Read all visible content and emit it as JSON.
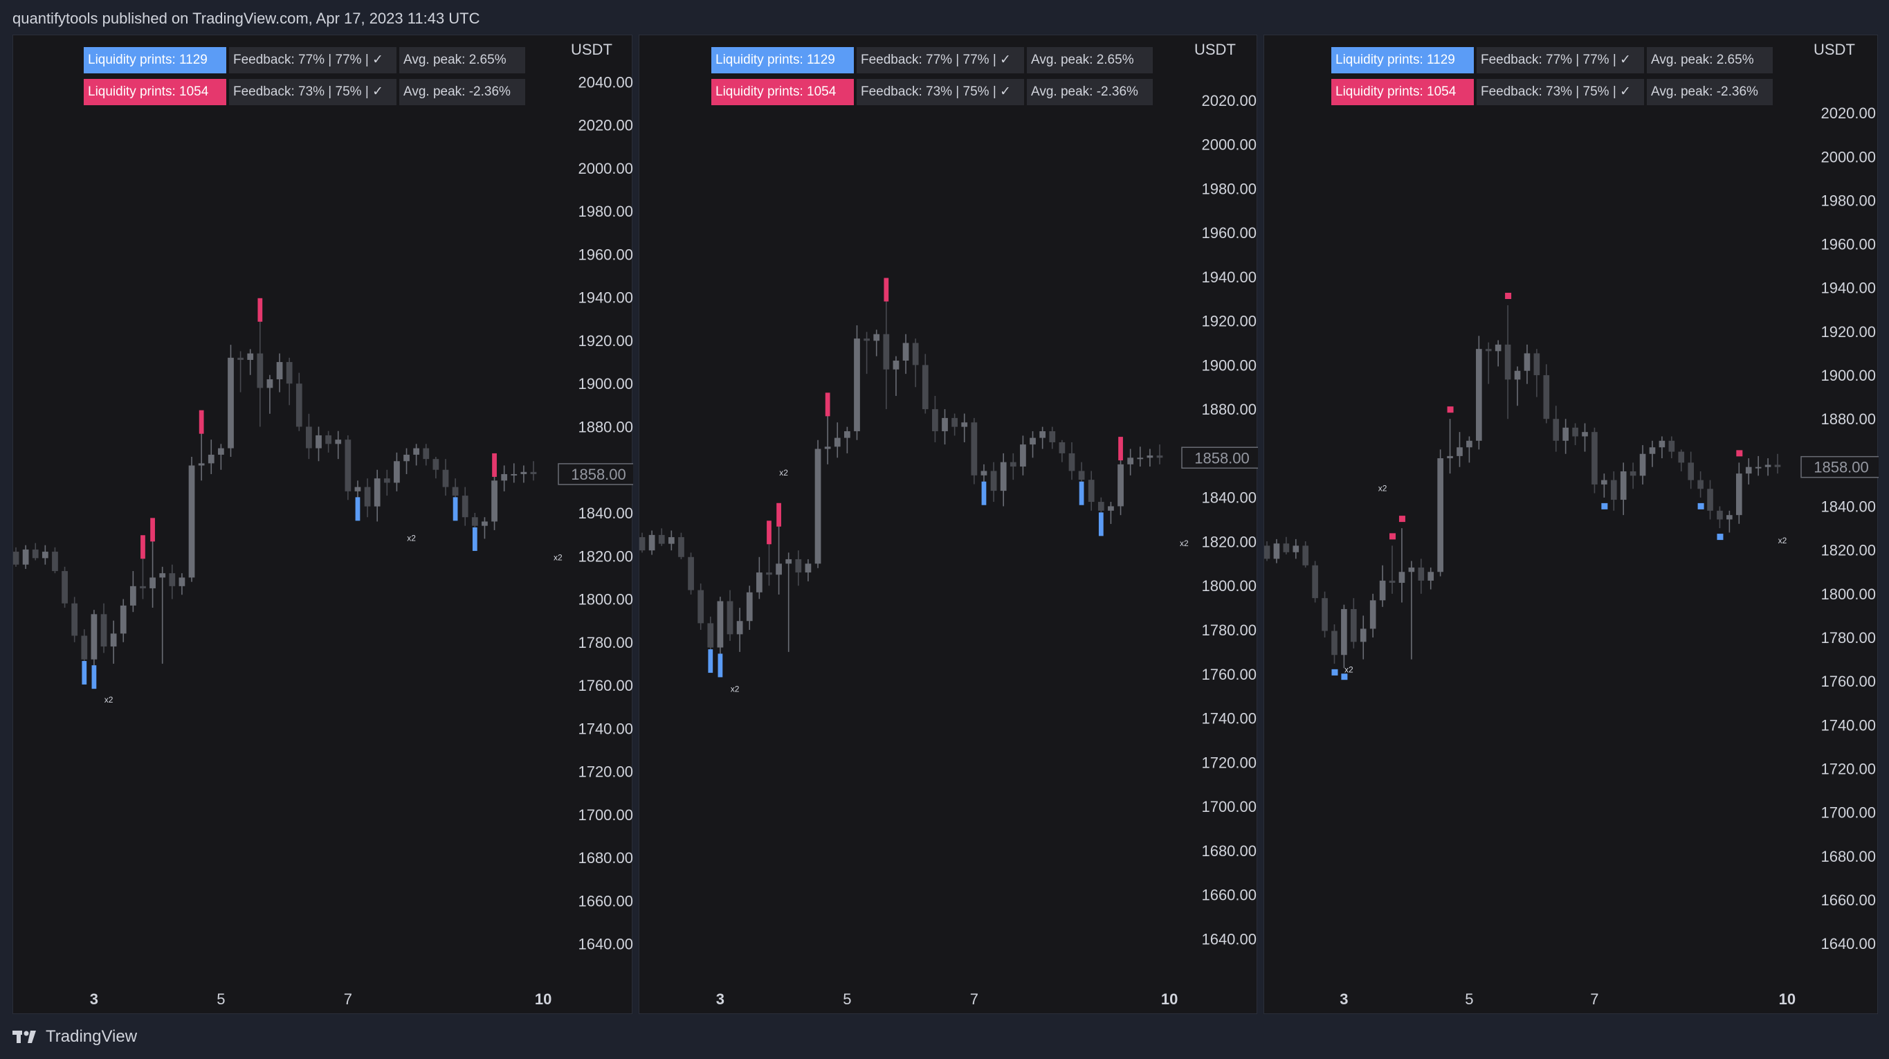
{
  "header": {
    "published_text": "quantifytools published on TradingView.com, Apr 17, 2023 11:43 UTC"
  },
  "footer": {
    "brand": "TradingView"
  },
  "colors": {
    "bullish_print": "#5b9cf6",
    "bearish_print": "#e5386d",
    "candle_up": "#6a6d75",
    "candle_down": "#47494f",
    "background": "#17171a"
  },
  "stats": {
    "bull_prints": "Liquidity prints: 1129",
    "bull_feedback": "Feedback: 77% | 77% | ✓",
    "bull_peak": "Avg. peak: 2.65%",
    "bear_prints": "Liquidity prints: 1054",
    "bear_feedback": "Feedback: 73% | 75% | ✓",
    "bear_peak": "Avg. peak: -2.36%"
  },
  "axis": {
    "currency": "USDT",
    "last_price": "1858.00"
  },
  "chart_data": [
    {
      "type": "candlestick",
      "y_ticks": [
        "2040.00",
        "2020.00",
        "2000.00",
        "1980.00",
        "1960.00",
        "1940.00",
        "1920.00",
        "1900.00",
        "1880.00",
        "1860.00",
        "1840.00",
        "1820.00",
        "1800.00",
        "1780.00",
        "1760.00",
        "1740.00",
        "1720.00",
        "1700.00",
        "1680.00",
        "1660.00",
        "1640.00"
      ],
      "x_ticks": [
        "3",
        "5",
        "7",
        "10"
      ],
      "ylim": [
        1628,
        2052
      ],
      "last_price": 1858,
      "marker_style": "bar",
      "annotations": [
        {
          "text": "x2",
          "x": 9.5,
          "y": 1752
        },
        {
          "text": "x2",
          "x": 40.5,
          "y": 1827
        },
        {
          "text": "x2",
          "x": 55.5,
          "y": 1818
        }
      ]
    },
    {
      "type": "candlestick",
      "y_ticks": [
        "2020.00",
        "2000.00",
        "1980.00",
        "1960.00",
        "1940.00",
        "1920.00",
        "1900.00",
        "1880.00",
        "1860.00",
        "1840.00",
        "1820.00",
        "1800.00",
        "1780.00",
        "1760.00",
        "1740.00",
        "1720.00",
        "1700.00",
        "1680.00",
        "1660.00",
        "1640.00"
      ],
      "x_ticks": [
        "3",
        "5",
        "7",
        "10"
      ],
      "ylim": [
        1626,
        2040
      ],
      "last_price": 1858,
      "marker_style": "bar",
      "annotations": [
        {
          "text": "x2",
          "x": 9.5,
          "y": 1752
        },
        {
          "text": "x2",
          "x": 14.5,
          "y": 1850
        },
        {
          "text": "x2",
          "x": 55.5,
          "y": 1818
        }
      ]
    },
    {
      "type": "candlestick",
      "y_ticks": [
        "2020.00",
        "2000.00",
        "1980.00",
        "1960.00",
        "1940.00",
        "1920.00",
        "1900.00",
        "1880.00",
        "1860.00",
        "1840.00",
        "1820.00",
        "1800.00",
        "1780.00",
        "1760.00",
        "1740.00",
        "1720.00",
        "1700.00",
        "1680.00",
        "1660.00",
        "1640.00"
      ],
      "x_ticks": [
        "3",
        "5",
        "7",
        "10"
      ],
      "ylim": [
        1628,
        2046
      ],
      "last_price": 1858,
      "marker_style": "square",
      "annotations": [
        {
          "text": "x2",
          "x": 8.5,
          "y": 1764
        },
        {
          "text": "x2",
          "x": 12,
          "y": 1847
        },
        {
          "text": "x2",
          "x": 53.5,
          "y": 1823
        }
      ]
    }
  ],
  "candles": {
    "x_tick_positions": [
      8,
      21,
      34,
      54
    ],
    "ohlc": [
      [
        1822,
        1824,
        1815,
        1816
      ],
      [
        1816,
        1825,
        1814,
        1823
      ],
      [
        1823,
        1826,
        1818,
        1819
      ],
      [
        1819,
        1825,
        1816,
        1822
      ],
      [
        1822,
        1824,
        1812,
        1813
      ],
      [
        1813,
        1815,
        1796,
        1798
      ],
      [
        1798,
        1801,
        1780,
        1783
      ],
      [
        1783,
        1786,
        1768,
        1772
      ],
      [
        1772,
        1795,
        1766,
        1793
      ],
      [
        1793,
        1798,
        1775,
        1778
      ],
      [
        1778,
        1790,
        1770,
        1784
      ],
      [
        1784,
        1800,
        1780,
        1797
      ],
      [
        1797,
        1813,
        1794,
        1806
      ],
      [
        1806,
        1822,
        1800,
        1805
      ],
      [
        1805,
        1830,
        1796,
        1810
      ],
      [
        1810,
        1815,
        1770,
        1812
      ],
      [
        1812,
        1816,
        1800,
        1806
      ],
      [
        1806,
        1812,
        1802,
        1810
      ],
      [
        1810,
        1866,
        1808,
        1862
      ],
      [
        1862,
        1880,
        1855,
        1863
      ],
      [
        1863,
        1874,
        1858,
        1867
      ],
      [
        1867,
        1872,
        1860,
        1870
      ],
      [
        1870,
        1918,
        1866,
        1912
      ],
      [
        1912,
        1915,
        1896,
        1911
      ],
      [
        1911,
        1916,
        1904,
        1914
      ],
      [
        1914,
        1932,
        1880,
        1898
      ],
      [
        1898,
        1904,
        1886,
        1902
      ],
      [
        1902,
        1914,
        1896,
        1910
      ],
      [
        1910,
        1912,
        1890,
        1900
      ],
      [
        1900,
        1905,
        1878,
        1880
      ],
      [
        1880,
        1886,
        1865,
        1870
      ],
      [
        1870,
        1880,
        1864,
        1876
      ],
      [
        1876,
        1878,
        1868,
        1872
      ],
      [
        1872,
        1878,
        1865,
        1874
      ],
      [
        1874,
        1876,
        1846,
        1850
      ],
      [
        1850,
        1855,
        1844,
        1852
      ],
      [
        1852,
        1856,
        1838,
        1843
      ],
      [
        1843,
        1860,
        1836,
        1856
      ],
      [
        1856,
        1860,
        1848,
        1854
      ],
      [
        1854,
        1868,
        1850,
        1864
      ],
      [
        1864,
        1870,
        1858,
        1867
      ],
      [
        1867,
        1872,
        1862,
        1870
      ],
      [
        1870,
        1872,
        1862,
        1865
      ],
      [
        1865,
        1866,
        1856,
        1860
      ],
      [
        1860,
        1865,
        1848,
        1852
      ],
      [
        1852,
        1856,
        1844,
        1848
      ],
      [
        1848,
        1852,
        1834,
        1838
      ],
      [
        1838,
        1840,
        1830,
        1834
      ],
      [
        1834,
        1838,
        1828,
        1836
      ],
      [
        1836,
        1860,
        1832,
        1855
      ],
      [
        1855,
        1862,
        1850,
        1858
      ],
      [
        1858,
        1863,
        1854,
        1858
      ],
      [
        1858,
        1862,
        1854,
        1859
      ],
      [
        1859,
        1864,
        1855,
        1858
      ]
    ],
    "bull_prints": [
      7,
      8,
      35,
      45,
      47
    ],
    "bear_prints": [
      13,
      14,
      19,
      25,
      49
    ]
  }
}
